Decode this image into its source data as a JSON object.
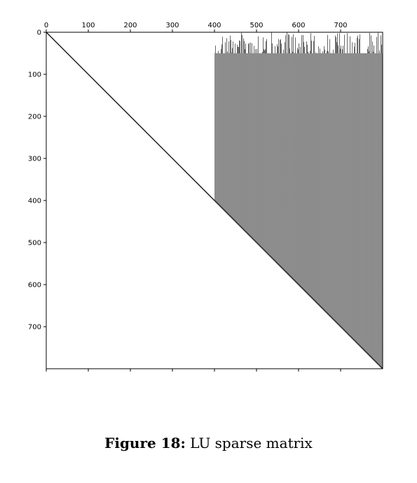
{
  "chart_data": {
    "type": "heatmap",
    "subtype": "sparsity-pattern",
    "matrix_size": [
      800,
      800
    ],
    "x_ticks": [
      0,
      100,
      200,
      300,
      400,
      500,
      600,
      700
    ],
    "y_ticks": [
      0,
      100,
      200,
      300,
      400,
      500,
      600,
      700
    ],
    "xlim": [
      0,
      800
    ],
    "ylim": [
      800,
      0
    ],
    "x_axis_position": "top",
    "grid": false,
    "structure": {
      "diagonal": {
        "from": 0,
        "to": 800
      },
      "dense_block": {
        "column_range": [
          400,
          800
        ],
        "top_row_range": [
          0,
          50
        ],
        "lower_boundary": "diagonal",
        "pattern": "fine checkerboard"
      }
    },
    "colors": {
      "nonzero": "#000000",
      "background": "#ffffff"
    }
  },
  "caption": {
    "label": "Figure 18:",
    "text": "LU sparse matrix"
  }
}
